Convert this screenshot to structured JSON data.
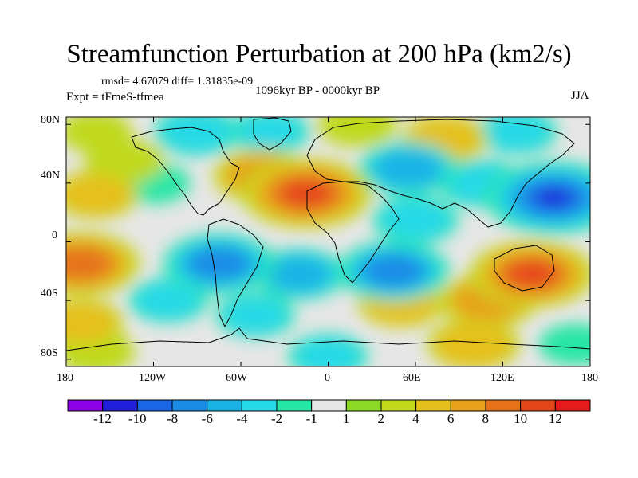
{
  "title": "Streamfunction Perturbation at 200 hPa (km2/s)",
  "stats": "rmsd= 4.67079 diff= 1.31835e-09",
  "period": "1096kyr BP - 0000kyr BP",
  "experiment": "Expt = tFmeS-tfmea",
  "season": "JJA",
  "lat_labels": [
    "80N",
    "40N",
    "0",
    "40S",
    "80S"
  ],
  "lon_labels": [
    "180",
    "120W",
    "60W",
    "0",
    "60E",
    "120E",
    "180"
  ],
  "colorbar": {
    "labels": [
      "-12",
      "-10",
      "-8",
      "-6",
      "-4",
      "-2",
      "-1",
      "1",
      "2",
      "4",
      "6",
      "8",
      "10",
      "12"
    ],
    "colors": [
      "#8c00e6",
      "#1f1fd9",
      "#1a66e6",
      "#1a8ce6",
      "#1ab3e6",
      "#26d9e6",
      "#26e6a6",
      "#e6e6e6",
      "#8cd926",
      "#c0d91a",
      "#e6c01a",
      "#e6a01a",
      "#e6731a",
      "#e6471a",
      "#e61a1a"
    ]
  },
  "anomalies": [
    {
      "lon": -140,
      "lat": 55,
      "value": 3
    },
    {
      "lon": -160,
      "lat": 32,
      "value": 4
    },
    {
      "lon": -90,
      "lat": 75,
      "value": -4
    },
    {
      "lon": -120,
      "lat": 40,
      "value": -2
    },
    {
      "lon": -160,
      "lat": 75,
      "value": 2
    },
    {
      "lon": -15,
      "lat": 33,
      "value": 11
    },
    {
      "lon": -45,
      "lat": 45,
      "value": 6
    },
    {
      "lon": 20,
      "lat": 80,
      "value": 3
    },
    {
      "lon": -40,
      "lat": 75,
      "value": -3
    },
    {
      "lon": 55,
      "lat": 50,
      "value": -6
    },
    {
      "lon": 155,
      "lat": 30,
      "value": -12
    },
    {
      "lon": 105,
      "lat": 40,
      "value": -4
    },
    {
      "lon": 130,
      "lat": 75,
      "value": -3
    },
    {
      "lon": 80,
      "lat": 70,
      "value": 4
    },
    {
      "lon": 60,
      "lat": 15,
      "value": -4
    },
    {
      "lon": -170,
      "lat": -15,
      "value": 9
    },
    {
      "lon": -75,
      "lat": -15,
      "value": -8
    },
    {
      "lon": -20,
      "lat": -22,
      "value": -5
    },
    {
      "lon": 45,
      "lat": -20,
      "value": -8
    },
    {
      "lon": 140,
      "lat": -22,
      "value": 10
    },
    {
      "lon": 110,
      "lat": -40,
      "value": 6
    },
    {
      "lon": -110,
      "lat": -40,
      "value": -3
    },
    {
      "lon": 50,
      "lat": -42,
      "value": 4
    },
    {
      "lon": -170,
      "lat": -55,
      "value": 4
    },
    {
      "lon": -50,
      "lat": -50,
      "value": -3
    },
    {
      "lon": -160,
      "lat": -75,
      "value": 3
    },
    {
      "lon": 0,
      "lat": -78,
      "value": -3
    },
    {
      "lon": 100,
      "lat": -70,
      "value": 5
    },
    {
      "lon": 170,
      "lat": -70,
      "value": -2
    }
  ]
}
